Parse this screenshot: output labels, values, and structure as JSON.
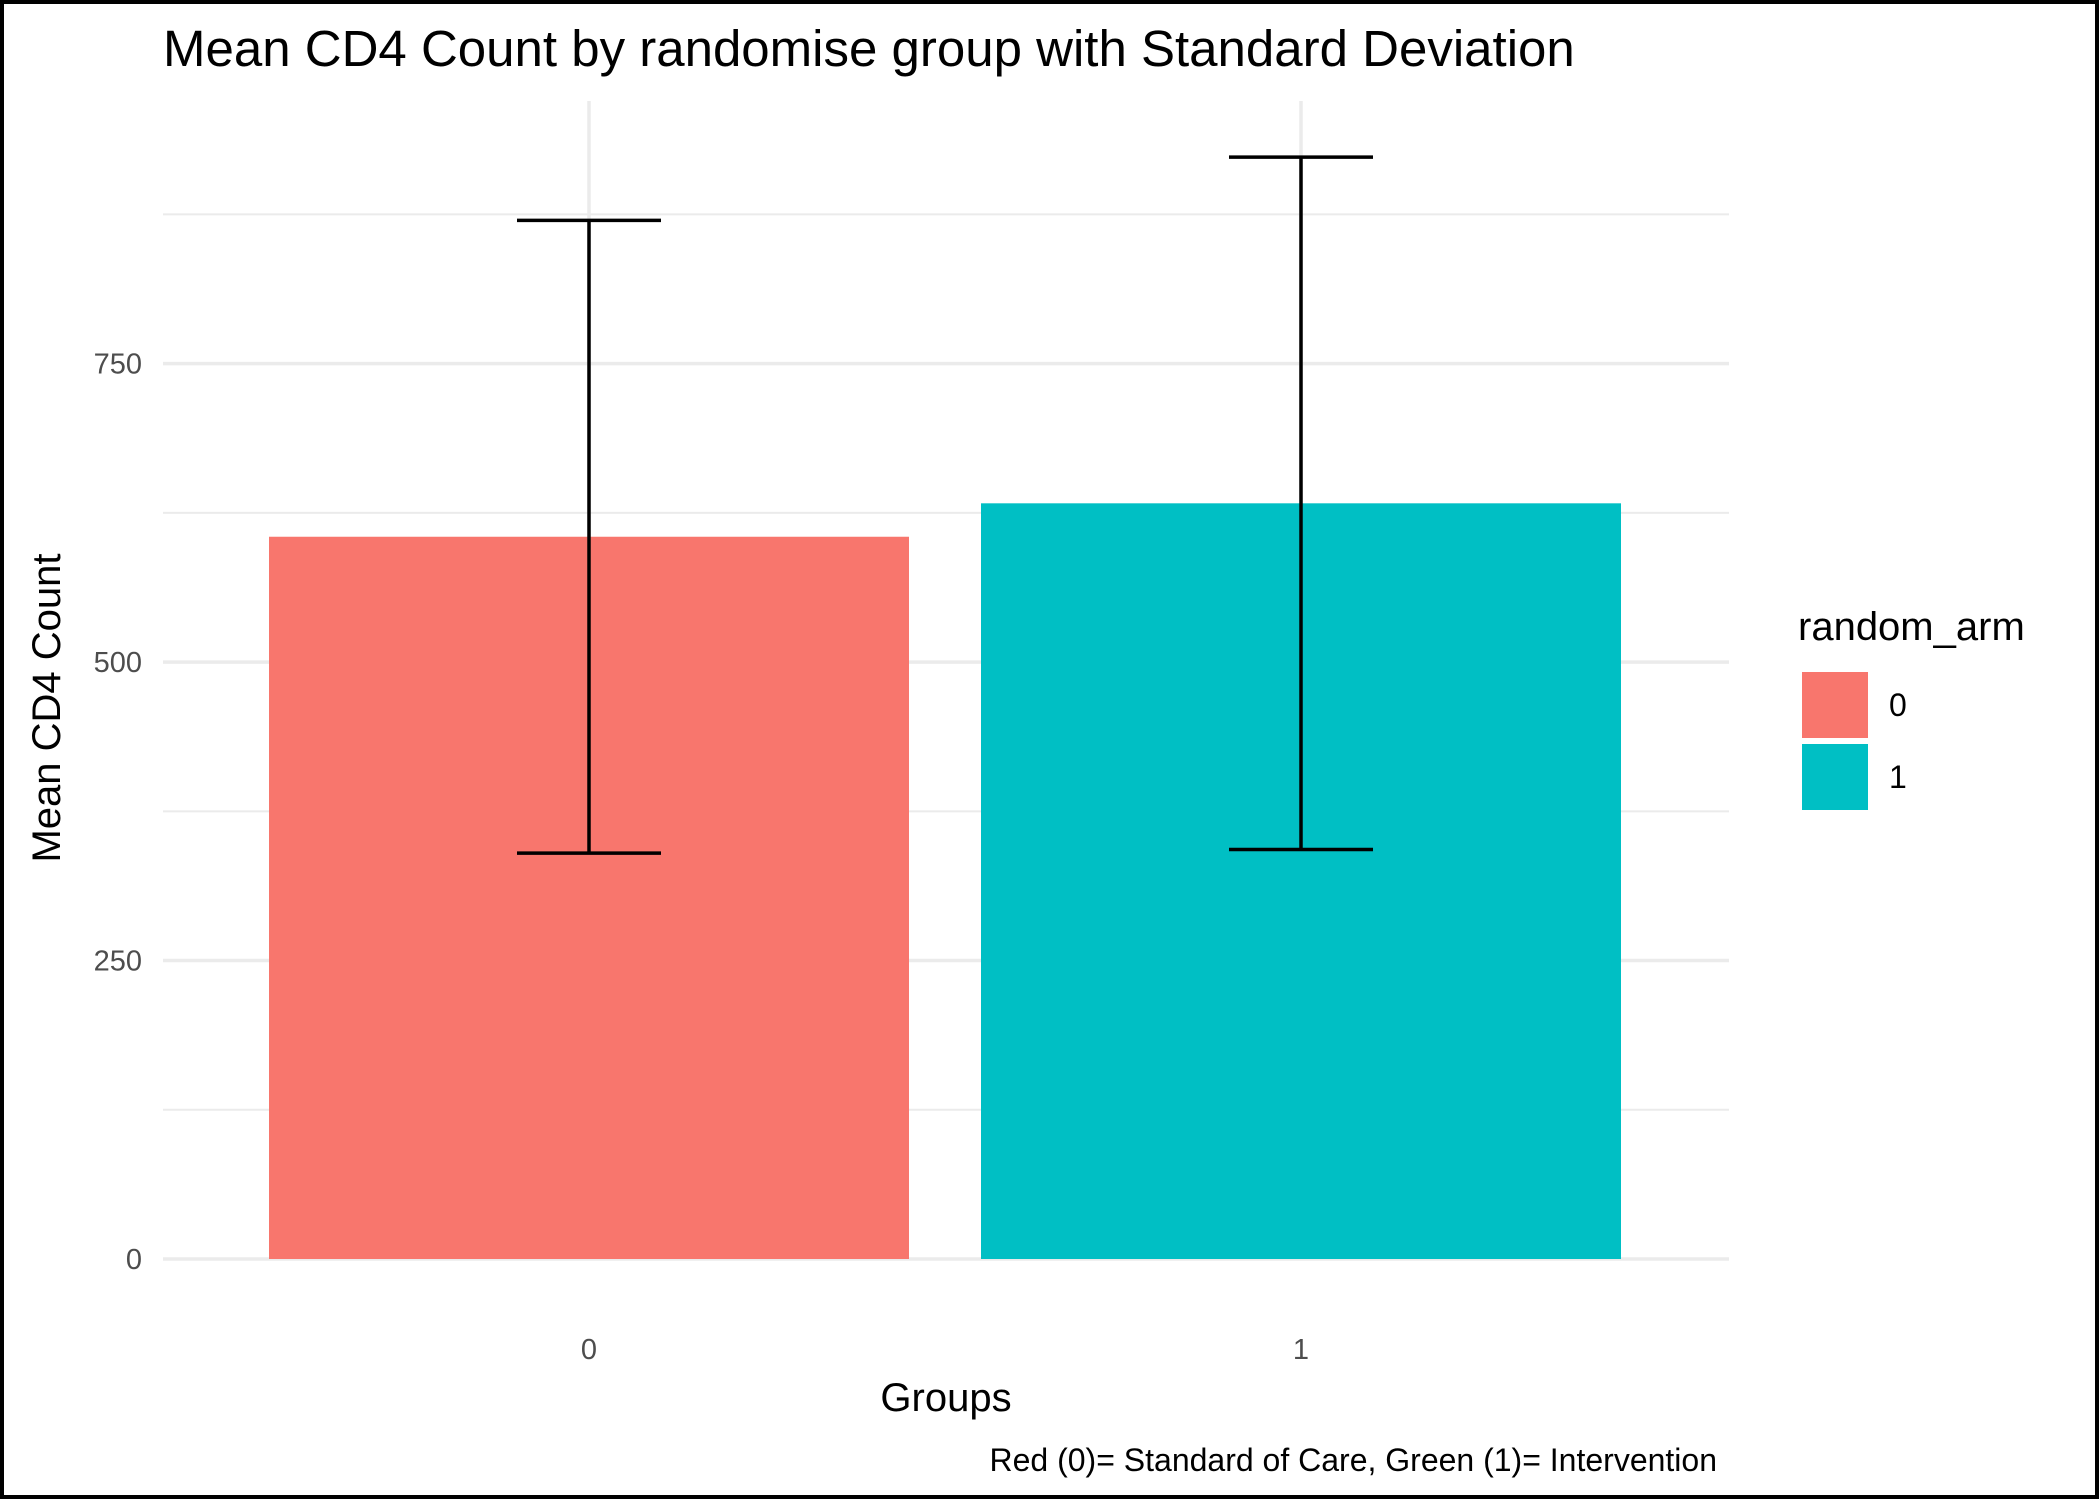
{
  "chart_data": {
    "type": "bar",
    "title": "Mean CD4 Count by randomise group with Standard Deviation",
    "xlabel": "Groups",
    "ylabel": "Mean CD4 Count",
    "caption": "Red (0)= Standard of Care, Green (1)= Intervention",
    "categories": [
      "0",
      "1"
    ],
    "values": [
      605,
      633
    ],
    "error_bars": [
      {
        "lower": 340,
        "upper": 870
      },
      {
        "lower": 343,
        "upper": 923
      }
    ],
    "colors": [
      "#F8766D",
      "#00BFC4"
    ],
    "ylim": [
      0,
      970
    ],
    "y_ticks": [
      0,
      250,
      500,
      750
    ],
    "y_minor_ticks": [
      125,
      375,
      625,
      875
    ],
    "grid": true,
    "legend": {
      "title": "random_arm",
      "position": "right",
      "items": [
        {
          "label": "0",
          "color": "#F8766D"
        },
        {
          "label": "1",
          "color": "#00BFC4"
        }
      ]
    }
  }
}
